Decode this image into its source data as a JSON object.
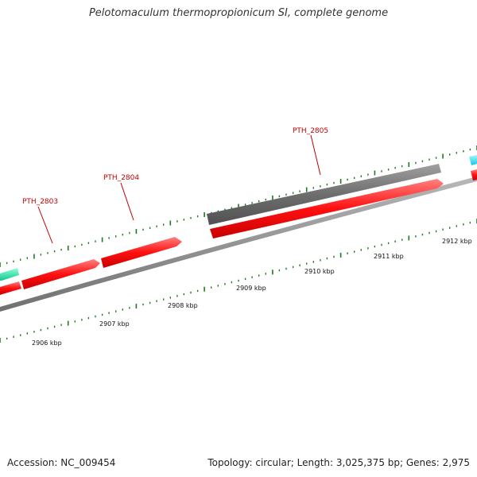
{
  "title": "Pelotomaculum thermopropionicum SI, complete genome",
  "footer": {
    "accession": "Accession: NC_009454",
    "summary": "Topology: circular; Length: 3,025,375 bp; Genes: 2,975"
  },
  "ruler": {
    "unit": "kbp",
    "labels": [
      "2906 kbp",
      "2907 kbp",
      "2908 kbp",
      "2909 kbp",
      "2910 kbp",
      "2911 kbp",
      "2912 kbp"
    ]
  },
  "gene_labels": [
    "PTH_2803",
    "PTH_2804",
    "PTH_2805"
  ],
  "colors": {
    "forward_gene": "#ff1010",
    "pseudo_gene": "#6e6e6e",
    "teal_gene": "#19e6a0",
    "cyan_gene": "#19e0f0",
    "backbone": "#8a8a8a",
    "tick": "#1e7a1e",
    "label_red": "#c00000"
  }
}
